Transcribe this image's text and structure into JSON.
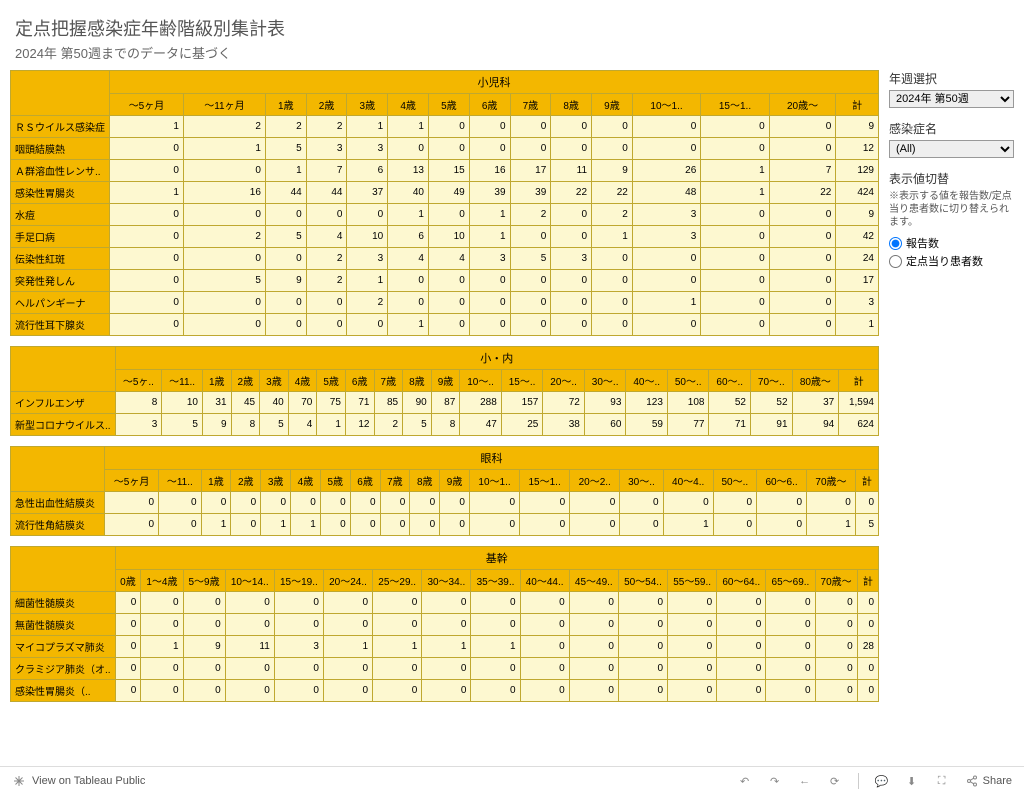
{
  "title": "定点把握感染症年齢階級別集計表",
  "subtitle": "2024年 第50週までのデータに基づく",
  "sidebar": {
    "week_label": "年週選択",
    "week_value": "2024年 第50週",
    "disease_label": "感染症名",
    "disease_value": "(All)",
    "toggle_label": "表示値切替",
    "toggle_note": "※表示する値を報告数/定点当り患者数に切り替えられます。",
    "radio1": "報告数",
    "radio2": "定点当り患者数"
  },
  "footer": {
    "tableau": "View on Tableau Public",
    "share": "Share"
  },
  "tables": [
    {
      "category": "小児科",
      "columns": [
        "～5ヶ月",
        "～11ヶ月",
        "1歳",
        "2歳",
        "3歳",
        "4歳",
        "5歳",
        "6歳",
        "7歳",
        "8歳",
        "9歳",
        "10～1..",
        "15～1..",
        "20歳～",
        "計"
      ],
      "rows": [
        {
          "label": "ＲＳウイルス感染症",
          "cells": [
            "1",
            "2",
            "2",
            "2",
            "1",
            "1",
            "0",
            "0",
            "0",
            "0",
            "0",
            "0",
            "0",
            "0",
            "9"
          ]
        },
        {
          "label": "咽頭結膜熱",
          "cells": [
            "0",
            "1",
            "5",
            "3",
            "3",
            "0",
            "0",
            "0",
            "0",
            "0",
            "0",
            "0",
            "0",
            "0",
            "12"
          ]
        },
        {
          "label": "Ａ群溶血性レンサ..",
          "cells": [
            "0",
            "0",
            "1",
            "7",
            "6",
            "13",
            "15",
            "16",
            "17",
            "11",
            "9",
            "26",
            "1",
            "7",
            "129"
          ]
        },
        {
          "label": "感染性胃腸炎",
          "cells": [
            "1",
            "16",
            "44",
            "44",
            "37",
            "40",
            "49",
            "39",
            "39",
            "22",
            "22",
            "48",
            "1",
            "22",
            "424"
          ]
        },
        {
          "label": "水痘",
          "cells": [
            "0",
            "0",
            "0",
            "0",
            "0",
            "1",
            "0",
            "1",
            "2",
            "0",
            "2",
            "3",
            "0",
            "0",
            "9"
          ]
        },
        {
          "label": "手足口病",
          "cells": [
            "0",
            "2",
            "5",
            "4",
            "10",
            "6",
            "10",
            "1",
            "0",
            "0",
            "1",
            "3",
            "0",
            "0",
            "42"
          ]
        },
        {
          "label": "伝染性紅斑",
          "cells": [
            "0",
            "0",
            "0",
            "2",
            "3",
            "4",
            "4",
            "3",
            "5",
            "3",
            "0",
            "0",
            "0",
            "0",
            "24"
          ]
        },
        {
          "label": "突発性発しん",
          "cells": [
            "0",
            "5",
            "9",
            "2",
            "1",
            "0",
            "0",
            "0",
            "0",
            "0",
            "0",
            "0",
            "0",
            "0",
            "17"
          ]
        },
        {
          "label": "ヘルパンギーナ",
          "cells": [
            "0",
            "0",
            "0",
            "0",
            "2",
            "0",
            "0",
            "0",
            "0",
            "0",
            "0",
            "1",
            "0",
            "0",
            "3"
          ]
        },
        {
          "label": "流行性耳下腺炎",
          "cells": [
            "0",
            "0",
            "0",
            "0",
            "0",
            "1",
            "0",
            "0",
            "0",
            "0",
            "0",
            "0",
            "0",
            "0",
            "1"
          ]
        }
      ]
    },
    {
      "category": "小・内",
      "columns": [
        "～5ヶ..",
        "～11..",
        "1歳",
        "2歳",
        "3歳",
        "4歳",
        "5歳",
        "6歳",
        "7歳",
        "8歳",
        "9歳",
        "10～..",
        "15～..",
        "20～..",
        "30～..",
        "40～..",
        "50～..",
        "60～..",
        "70～..",
        "80歳～",
        "計"
      ],
      "rows": [
        {
          "label": "インフルエンザ",
          "cells": [
            "8",
            "10",
            "31",
            "45",
            "40",
            "70",
            "75",
            "71",
            "85",
            "90",
            "87",
            "288",
            "157",
            "72",
            "93",
            "123",
            "108",
            "52",
            "52",
            "37",
            "1,594"
          ]
        },
        {
          "label": "新型コロナウイルス..",
          "cells": [
            "3",
            "5",
            "9",
            "8",
            "5",
            "4",
            "1",
            "12",
            "2",
            "5",
            "8",
            "47",
            "25",
            "38",
            "60",
            "59",
            "77",
            "71",
            "91",
            "94",
            "624"
          ]
        }
      ]
    },
    {
      "category": "眼科",
      "columns": [
        "～5ヶ月",
        "～11..",
        "1歳",
        "2歳",
        "3歳",
        "4歳",
        "5歳",
        "6歳",
        "7歳",
        "8歳",
        "9歳",
        "10～1..",
        "15～1..",
        "20～2..",
        "30～..",
        "40～4..",
        "50～..",
        "60～6..",
        "70歳～",
        "計"
      ],
      "rows": [
        {
          "label": "急性出血性結膜炎",
          "cells": [
            "0",
            "0",
            "0",
            "0",
            "0",
            "0",
            "0",
            "0",
            "0",
            "0",
            "0",
            "0",
            "0",
            "0",
            "0",
            "0",
            "0",
            "0",
            "0",
            "0"
          ]
        },
        {
          "label": "流行性角結膜炎",
          "cells": [
            "0",
            "0",
            "1",
            "0",
            "1",
            "1",
            "0",
            "0",
            "0",
            "0",
            "0",
            "0",
            "0",
            "0",
            "0",
            "1",
            "0",
            "0",
            "1",
            "5"
          ]
        }
      ]
    },
    {
      "category": "基幹",
      "columns": [
        "0歳",
        "1～4歳",
        "5～9歳",
        "10～14..",
        "15～19..",
        "20～24..",
        "25～29..",
        "30～34..",
        "35～39..",
        "40～44..",
        "45～49..",
        "50～54..",
        "55～59..",
        "60～64..",
        "65～69..",
        "70歳～",
        "計"
      ],
      "rows": [
        {
          "label": "細菌性髄膜炎",
          "cells": [
            "0",
            "0",
            "0",
            "0",
            "0",
            "0",
            "0",
            "0",
            "0",
            "0",
            "0",
            "0",
            "0",
            "0",
            "0",
            "0",
            "0"
          ]
        },
        {
          "label": "無菌性髄膜炎",
          "cells": [
            "0",
            "0",
            "0",
            "0",
            "0",
            "0",
            "0",
            "0",
            "0",
            "0",
            "0",
            "0",
            "0",
            "0",
            "0",
            "0",
            "0"
          ]
        },
        {
          "label": "マイコプラズマ肺炎",
          "cells": [
            "0",
            "1",
            "9",
            "11",
            "3",
            "1",
            "1",
            "1",
            "1",
            "0",
            "0",
            "0",
            "0",
            "0",
            "0",
            "0",
            "28"
          ]
        },
        {
          "label": "クラミジア肺炎（オ..",
          "cells": [
            "0",
            "0",
            "0",
            "0",
            "0",
            "0",
            "0",
            "0",
            "0",
            "0",
            "0",
            "0",
            "0",
            "0",
            "0",
            "0",
            "0"
          ]
        },
        {
          "label": "感染性胃腸炎（..",
          "cells": [
            "0",
            "0",
            "0",
            "0",
            "0",
            "0",
            "0",
            "0",
            "0",
            "0",
            "0",
            "0",
            "0",
            "0",
            "0",
            "0",
            "0"
          ]
        }
      ]
    }
  ]
}
